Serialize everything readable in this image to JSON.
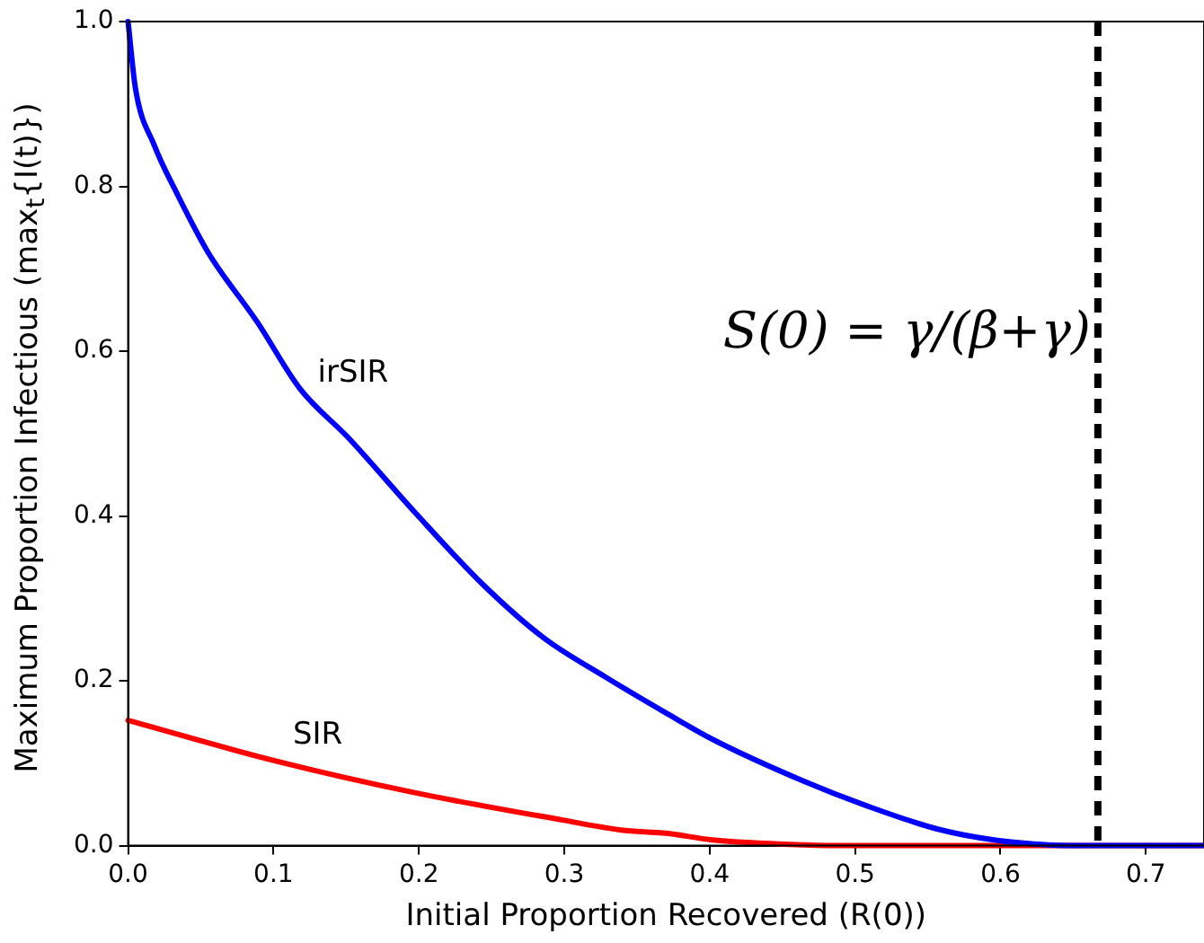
{
  "chart_data": {
    "type": "line",
    "xlabel": "Initial Proportion Recovered (R(0))",
    "ylabel": "Maximum Proportion Infectious (max$_{t}${I(t)})",
    "xlim": [
      0,
      0.74
    ],
    "ylim": [
      0,
      1
    ],
    "xticks": [
      {
        "value": 0,
        "label": "0.0"
      },
      {
        "value": 0.1,
        "label": "0.1"
      },
      {
        "value": 0.2,
        "label": "0.2"
      },
      {
        "value": 0.3,
        "label": "0.3"
      },
      {
        "value": 0.4,
        "label": "0.4"
      },
      {
        "value": 0.5,
        "label": "0.5"
      },
      {
        "value": 0.6,
        "label": "0.6"
      },
      {
        "value": 0.7,
        "label": "0.7"
      }
    ],
    "yticks": [
      {
        "value": 0,
        "label": "0.0"
      },
      {
        "value": 0.2,
        "label": "0.2"
      },
      {
        "value": 0.4,
        "label": "0.4"
      },
      {
        "value": 0.6,
        "label": "0.6"
      },
      {
        "value": 0.8,
        "label": "0.8"
      },
      {
        "value": 1,
        "label": "1.0"
      }
    ],
    "grid": false,
    "legend": false,
    "marker": "none",
    "line_style": "solid",
    "series": [
      {
        "name": "irSIR",
        "color": "#0000ff",
        "x": [
          0,
          0.005,
          0.018,
          0.034,
          0.055,
          0.089,
          0.118,
          0.152,
          0.198,
          0.244,
          0.286,
          0.328,
          0.37,
          0.402,
          0.465,
          0.507,
          0.557,
          0.599,
          0.633,
          0.667,
          0.74
        ],
        "values": [
          1,
          0.92,
          0.85,
          0.79,
          0.72,
          0.635,
          0.555,
          0.494,
          0.403,
          0.317,
          0.252,
          0.205,
          0.161,
          0.129,
          0.078,
          0.049,
          0.02,
          0.006,
          0.001,
          0,
          0
        ]
      },
      {
        "name": "SIR",
        "color": "#ff0000",
        "x": [
          0,
          0.101,
          0.198,
          0.299,
          0.339,
          0.37,
          0.402,
          0.465,
          0.5,
          0.74
        ],
        "values": [
          0.152,
          0.103,
          0.064,
          0.031,
          0.019,
          0.015,
          0.007,
          0.001,
          0,
          0
        ]
      }
    ],
    "ref_lines": [
      {
        "axis": "x",
        "value": 0.667,
        "label": "S(0) = γ/(β+γ)",
        "color": "#000000",
        "line_style": "dashed"
      }
    ]
  }
}
